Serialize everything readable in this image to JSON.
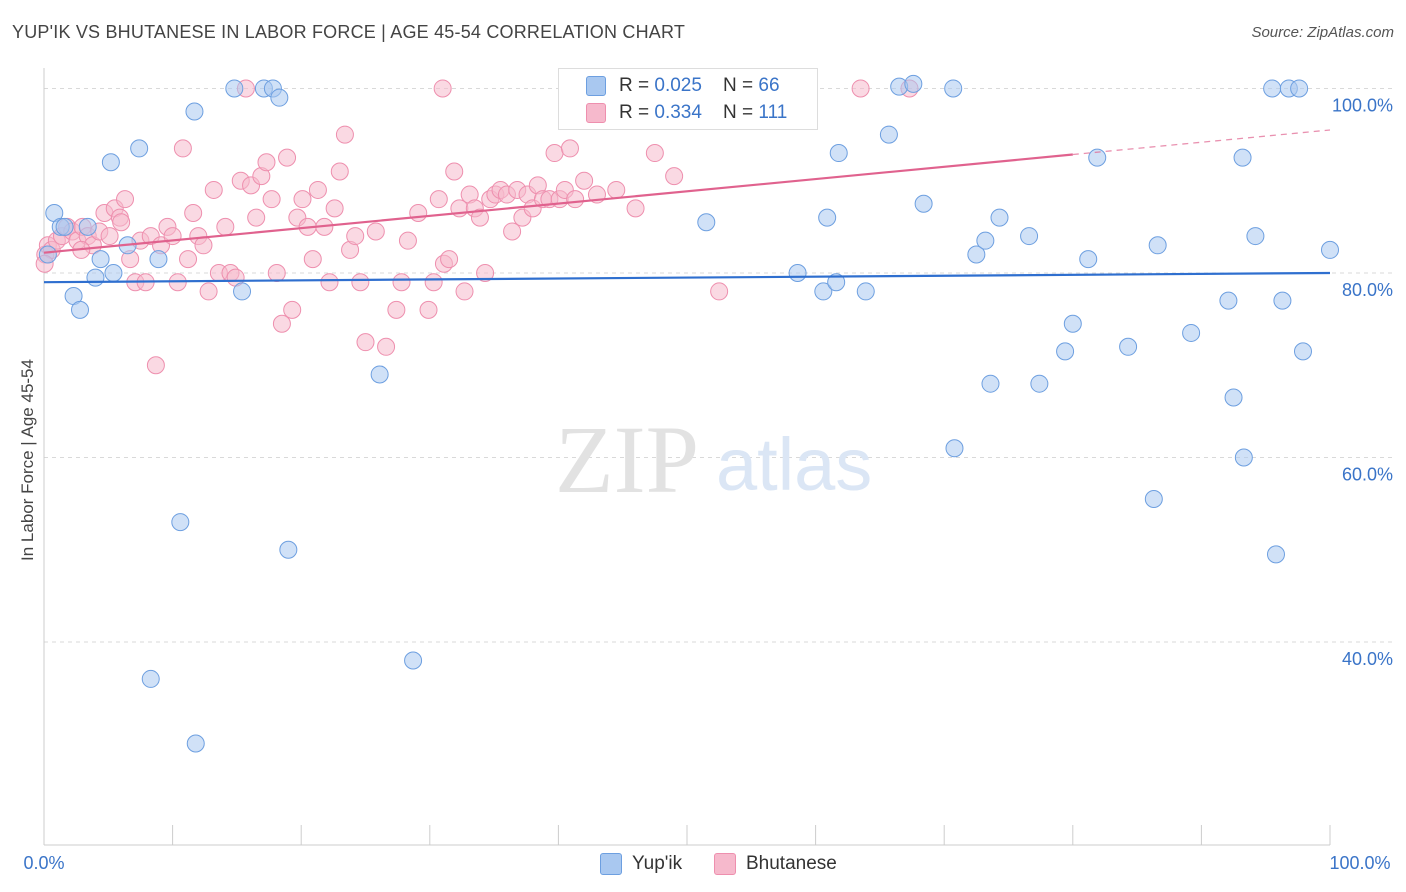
{
  "title": "YUP'IK VS BHUTANESE IN LABOR FORCE | AGE 45-54 CORRELATION CHART",
  "source": "Source: ZipAtlas.com",
  "watermark": {
    "zip": "ZIP",
    "atlas": "atlas"
  },
  "legend": {
    "rows": [
      {
        "r_label": "R = ",
        "r_value": "0.025",
        "n_label": "N = ",
        "n_value": "66"
      },
      {
        "r_label": "R = ",
        "r_value": "0.334",
        "n_label": "N = ",
        "n_value": "111"
      }
    ]
  },
  "bottom_legend": [
    "Yup'ik",
    "Bhutanese"
  ],
  "colors": {
    "yupik_fill": "#a9c8f0",
    "yupik_stroke": "#6d9fe0",
    "yupik_line": "#2f6fcf",
    "bhutanese_fill": "#f6b9cc",
    "bhutanese_stroke": "#ee8fae",
    "bhutanese_line": "#e0628e",
    "tick_label": "#3a74c8",
    "grid": "#d9d9d9"
  },
  "chart_data": {
    "type": "scatter",
    "title": "YUP'IK VS BHUTANESE IN LABOR FORCE | AGE 45-54 CORRELATION CHART",
    "xlabel": "",
    "ylabel": "In Labor Force | Age 45-54",
    "xlim": [
      0,
      100
    ],
    "ylim": [
      18,
      102
    ],
    "x_tick_labels": [
      "0.0%",
      "100.0%"
    ],
    "y_ticks": [
      40,
      60,
      80,
      100
    ],
    "y_tick_labels": [
      "40.0%",
      "60.0%",
      "80.0%",
      "100.0%"
    ],
    "grid": true,
    "series": [
      {
        "name": "Yup'ik",
        "r": 0.025,
        "n": 66,
        "trend": {
          "x": [
            0,
            100
          ],
          "y": [
            79.0,
            80.0
          ],
          "solid_until": 100
        },
        "points": [
          [
            0.3,
            82
          ],
          [
            0.8,
            86.5
          ],
          [
            1.3,
            85
          ],
          [
            1.6,
            85
          ],
          [
            2.3,
            77.5
          ],
          [
            2.8,
            76
          ],
          [
            3.4,
            85
          ],
          [
            4,
            79.5
          ],
          [
            4.4,
            81.5
          ],
          [
            5.4,
            80
          ],
          [
            5.2,
            92
          ],
          [
            6.5,
            83
          ],
          [
            7.4,
            93.5
          ],
          [
            8.3,
            36
          ],
          [
            8.9,
            81.5
          ],
          [
            10.6,
            53
          ],
          [
            11.8,
            29
          ],
          [
            11.7,
            97.5
          ],
          [
            14.8,
            100
          ],
          [
            15.4,
            78
          ],
          [
            17.1,
            100
          ],
          [
            17.8,
            100
          ],
          [
            18.3,
            99
          ],
          [
            19,
            50
          ],
          [
            26.1,
            69
          ],
          [
            28.7,
            38
          ],
          [
            51.5,
            85.5
          ],
          [
            58.6,
            80
          ],
          [
            59.3,
            100.5
          ],
          [
            60.6,
            78
          ],
          [
            60.9,
            86
          ],
          [
            61.6,
            79
          ],
          [
            61.8,
            93
          ],
          [
            63.9,
            78
          ],
          [
            65.7,
            95
          ],
          [
            66.5,
            100.2
          ],
          [
            67.6,
            100.5
          ],
          [
            68.4,
            87.5
          ],
          [
            70.7,
            100
          ],
          [
            70.8,
            61
          ],
          [
            72.5,
            82
          ],
          [
            73.2,
            83.5
          ],
          [
            73.6,
            68
          ],
          [
            74.3,
            86
          ],
          [
            76.6,
            84
          ],
          [
            77.4,
            68
          ],
          [
            79.4,
            71.5
          ],
          [
            80,
            74.5
          ],
          [
            81.2,
            81.5
          ],
          [
            81.9,
            92.5
          ],
          [
            84.3,
            72
          ],
          [
            86.3,
            55.5
          ],
          [
            86.6,
            83
          ],
          [
            89.2,
            73.5
          ],
          [
            92.1,
            77
          ],
          [
            92.5,
            66.5
          ],
          [
            93.2,
            92.5
          ],
          [
            93.3,
            60
          ],
          [
            94.2,
            84
          ],
          [
            95.5,
            100
          ],
          [
            95.8,
            49.5
          ],
          [
            96.3,
            77
          ],
          [
            96.8,
            100
          ],
          [
            97.6,
            100
          ],
          [
            97.9,
            71.5
          ],
          [
            100,
            82.5
          ]
        ]
      },
      {
        "name": "Bhutanese",
        "r": 0.334,
        "n": 111,
        "trend": {
          "x": [
            0,
            100
          ],
          "y": [
            82.2,
            95.5
          ],
          "solid_until": 80
        },
        "points": [
          [
            0.1,
            82
          ],
          [
            0.3,
            83
          ],
          [
            0.6,
            82.5
          ],
          [
            1.0,
            83.5
          ],
          [
            1.4,
            84
          ],
          [
            1.8,
            85
          ],
          [
            2.2,
            84.5
          ],
          [
            2.6,
            83.5
          ],
          [
            3.0,
            85
          ],
          [
            3.4,
            84
          ],
          [
            3.8,
            83
          ],
          [
            4.3,
            84.5
          ],
          [
            4.7,
            86.5
          ],
          [
            5.1,
            84
          ],
          [
            5.5,
            87
          ],
          [
            5.9,
            86
          ],
          [
            6.3,
            88
          ],
          [
            6.7,
            81.5
          ],
          [
            7.1,
            79
          ],
          [
            7.5,
            83.5
          ],
          [
            7.9,
            79
          ],
          [
            8.3,
            84
          ],
          [
            8.7,
            70
          ],
          [
            9.1,
            83
          ],
          [
            9.6,
            85
          ],
          [
            10,
            84
          ],
          [
            10.4,
            79
          ],
          [
            10.8,
            93.5
          ],
          [
            11.2,
            81.5
          ],
          [
            11.6,
            86.5
          ],
          [
            12,
            84
          ],
          [
            12.4,
            83
          ],
          [
            12.8,
            78
          ],
          [
            13.2,
            89
          ],
          [
            13.6,
            80
          ],
          [
            14.1,
            85
          ],
          [
            14.5,
            80
          ],
          [
            14.9,
            79.5
          ],
          [
            15.3,
            90
          ],
          [
            15.7,
            100
          ],
          [
            16.1,
            89.5
          ],
          [
            16.5,
            86
          ],
          [
            16.9,
            90.5
          ],
          [
            17.3,
            92
          ],
          [
            17.7,
            88
          ],
          [
            18.1,
            80
          ],
          [
            18.5,
            74.5
          ],
          [
            18.9,
            92.5
          ],
          [
            19.3,
            76
          ],
          [
            19.7,
            86
          ],
          [
            20.1,
            88
          ],
          [
            20.5,
            85
          ],
          [
            20.9,
            81.5
          ],
          [
            21.3,
            89
          ],
          [
            21.8,
            85
          ],
          [
            22.2,
            79
          ],
          [
            22.6,
            87
          ],
          [
            23,
            91
          ],
          [
            23.4,
            95
          ],
          [
            23.8,
            82.5
          ],
          [
            24.2,
            84
          ],
          [
            24.6,
            79
          ],
          [
            25,
            72.5
          ],
          [
            25.8,
            84.5
          ],
          [
            26.6,
            72
          ],
          [
            27.4,
            76
          ],
          [
            27.8,
            79
          ],
          [
            28.3,
            83.5
          ],
          [
            29.1,
            86.5
          ],
          [
            29.9,
            76
          ],
          [
            30.3,
            79
          ],
          [
            30.7,
            88
          ],
          [
            31.1,
            81
          ],
          [
            31.5,
            81.5
          ],
          [
            31.9,
            91
          ],
          [
            32.3,
            87
          ],
          [
            32.7,
            78
          ],
          [
            33.1,
            88.5
          ],
          [
            33.5,
            87
          ],
          [
            33.9,
            86
          ],
          [
            34.3,
            80
          ],
          [
            34.7,
            88
          ],
          [
            35.1,
            88.5
          ],
          [
            35.5,
            89
          ],
          [
            36.0,
            88.5
          ],
          [
            36.4,
            84.5
          ],
          [
            36.8,
            89
          ],
          [
            37.2,
            86
          ],
          [
            37.6,
            88.5
          ],
          [
            38.0,
            87
          ],
          [
            38.4,
            89.5
          ],
          [
            38.8,
            88
          ],
          [
            39.3,
            88
          ],
          [
            39.7,
            93
          ],
          [
            40.1,
            88
          ],
          [
            40.5,
            89
          ],
          [
            40.9,
            93.5
          ],
          [
            41.3,
            88
          ],
          [
            42,
            90
          ],
          [
            43,
            88.5
          ],
          [
            44.5,
            89
          ],
          [
            46,
            87
          ],
          [
            47.5,
            93
          ],
          [
            49,
            90.5
          ],
          [
            52.5,
            78
          ],
          [
            31,
            100
          ],
          [
            63.5,
            100
          ],
          [
            67.3,
            100
          ],
          [
            0.05,
            81
          ],
          [
            2.9,
            82.5
          ],
          [
            6.0,
            85.5
          ]
        ]
      }
    ]
  }
}
